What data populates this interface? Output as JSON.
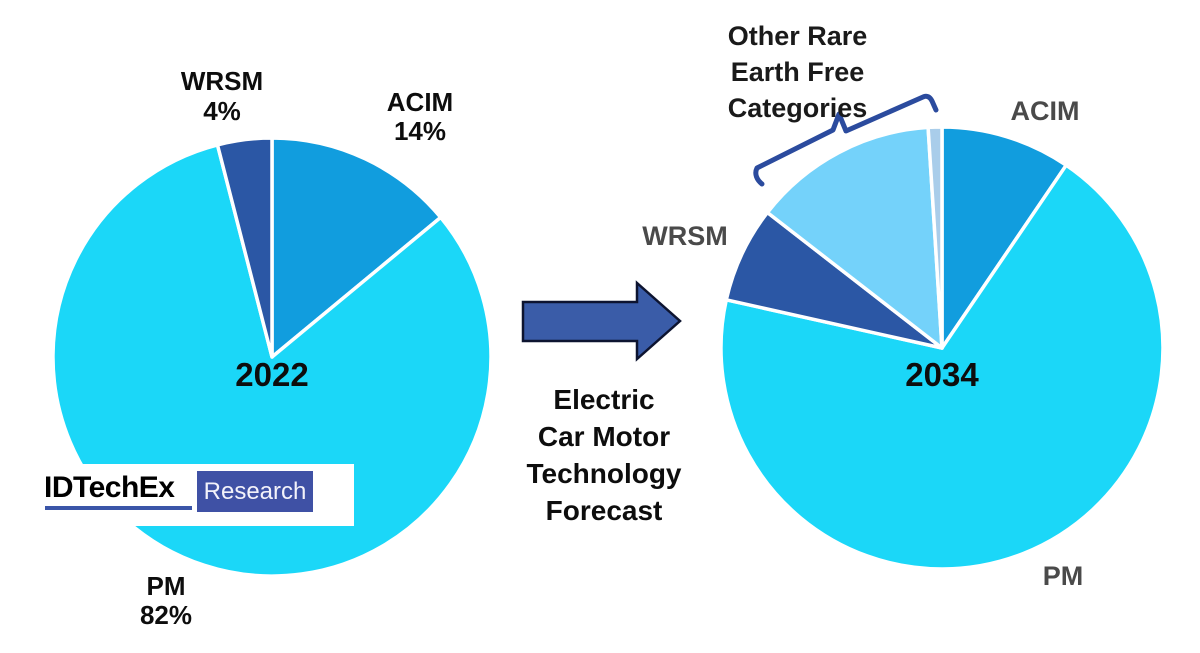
{
  "left_pie": {
    "year": "2022",
    "labels": {
      "wrsm": "WRSM",
      "wrsm_pct": "4%",
      "acim": "ACIM",
      "acim_pct": "14%",
      "pm": "PM",
      "pm_pct": "82%"
    }
  },
  "right_pie": {
    "year": "2034",
    "labels": {
      "acim": "ACIM",
      "wrsm": "WRSM",
      "pm": "PM",
      "other_l1": "Other Rare",
      "other_l2": "Earth Free",
      "other_l3": "Categories"
    }
  },
  "arrow_caption": {
    "lines": [
      "Electric",
      "Car Motor",
      "Technology",
      "Forecast"
    ]
  },
  "logo": {
    "brand": "IDTechEx",
    "product": "Research",
    "underline_color": "#3a55a8",
    "box_color": "#3f51a5"
  },
  "colors": {
    "pm_cyan": "#1bd7f8",
    "acim_blue": "#119dde",
    "wrsm_dark_blue": "#2b57a5",
    "other_ref_light_blue": "#74d2fa",
    "other_ref_pale_sliver": "#a9cdea",
    "slice_border": "#ffffff",
    "arrow_fill": "#3a5ca8",
    "arrow_stroke": "#0d1430",
    "brace_blue": "#2b4b9e",
    "gray_label": "#4a4a4a"
  },
  "chart_data": [
    {
      "type": "pie",
      "title": "2022",
      "center_label": "2022",
      "categories": [
        "ACIM",
        "PM",
        "WRSM"
      ],
      "values": [
        14,
        82,
        4
      ],
      "unit": "percent",
      "colors": [
        "#119dde",
        "#1bd7f8",
        "#2b57a5"
      ],
      "start_angle_deg": 0,
      "direction": "clockwise",
      "labels_shown": [
        "ACIM 14%",
        "PM 82%",
        "WRSM 4%"
      ]
    },
    {
      "type": "pie",
      "title": "2034",
      "center_label": "2034",
      "categories": [
        "ACIM",
        "PM",
        "WRSM",
        "Other Rare Earth Free Categories (light blue)",
        "Other Rare Earth Free Categories (pale sliver)"
      ],
      "values": [
        9.5,
        69,
        7,
        13.5,
        1
      ],
      "values_note": "2034 percentages are not printed on the chart; values estimated from slice angles",
      "unit": "percent",
      "colors": [
        "#119dde",
        "#1bd7f8",
        "#2b57a5",
        "#74d2fa",
        "#a9cdea"
      ],
      "start_angle_deg": 0,
      "direction": "clockwise",
      "labels_shown": [
        "ACIM",
        "PM",
        "WRSM",
        "Other Rare Earth Free Categories"
      ]
    }
  ]
}
